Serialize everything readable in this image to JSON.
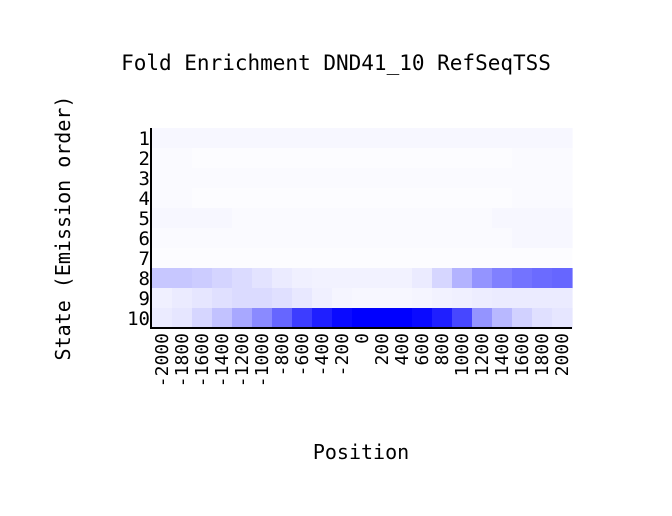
{
  "chart_data": {
    "type": "heatmap",
    "title": "Fold Enrichment DND41_10 RefSeqTSS",
    "xlabel": "Position",
    "ylabel": "State (Emission order)",
    "x_tick_labels": [
      "-2000",
      "-1800",
      "-1600",
      "-1400",
      "-1200",
      "-1000",
      "-800",
      "-600",
      "-400",
      "-200",
      "0",
      "200",
      "400",
      "600",
      "800",
      "1000",
      "1200",
      "1400",
      "1600",
      "1800",
      "2000"
    ],
    "y_tick_labels": [
      "1",
      "2",
      "3",
      "4",
      "5",
      "6",
      "7",
      "8",
      "9",
      "10"
    ],
    "color_scale": {
      "low": "#ffffff",
      "high": "#0000ff"
    },
    "values": [
      [
        0.03,
        0.03,
        0.03,
        0.03,
        0.03,
        0.03,
        0.03,
        0.03,
        0.03,
        0.03,
        0.03,
        0.03,
        0.03,
        0.03,
        0.03,
        0.03,
        0.03,
        0.03,
        0.03,
        0.03,
        0.03
      ],
      [
        0.02,
        0.02,
        0.01,
        0.01,
        0.01,
        0.01,
        0.01,
        0.01,
        0.01,
        0.01,
        0.01,
        0.01,
        0.01,
        0.01,
        0.01,
        0.01,
        0.01,
        0.01,
        0.02,
        0.02,
        0.02
      ],
      [
        0.02,
        0.02,
        0.02,
        0.02,
        0.02,
        0.02,
        0.02,
        0.02,
        0.02,
        0.02,
        0.02,
        0.02,
        0.02,
        0.02,
        0.02,
        0.02,
        0.02,
        0.02,
        0.02,
        0.02,
        0.02
      ],
      [
        0.02,
        0.02,
        0.01,
        0.01,
        0.01,
        0.01,
        0.01,
        0.01,
        0.01,
        0.01,
        0.01,
        0.01,
        0.01,
        0.01,
        0.01,
        0.01,
        0.01,
        0.01,
        0.02,
        0.02,
        0.02
      ],
      [
        0.03,
        0.03,
        0.03,
        0.03,
        0.02,
        0.02,
        0.02,
        0.02,
        0.02,
        0.02,
        0.02,
        0.02,
        0.02,
        0.02,
        0.02,
        0.02,
        0.02,
        0.03,
        0.03,
        0.03,
        0.03
      ],
      [
        0.02,
        0.02,
        0.02,
        0.02,
        0.02,
        0.02,
        0.02,
        0.02,
        0.02,
        0.02,
        0.02,
        0.02,
        0.02,
        0.02,
        0.02,
        0.02,
        0.02,
        0.02,
        0.03,
        0.03,
        0.03
      ],
      [
        0.01,
        0.01,
        0.01,
        0.01,
        0.01,
        0.01,
        0.01,
        0.01,
        0.01,
        0.01,
        0.01,
        0.01,
        0.01,
        0.01,
        0.01,
        0.01,
        0.01,
        0.01,
        0.01,
        0.01,
        0.01
      ],
      [
        0.22,
        0.22,
        0.2,
        0.17,
        0.14,
        0.11,
        0.08,
        0.06,
        0.05,
        0.05,
        0.05,
        0.05,
        0.05,
        0.08,
        0.16,
        0.3,
        0.42,
        0.5,
        0.55,
        0.58,
        0.6
      ],
      [
        0.06,
        0.08,
        0.1,
        0.12,
        0.14,
        0.14,
        0.12,
        0.09,
        0.06,
        0.04,
        0.03,
        0.03,
        0.03,
        0.04,
        0.05,
        0.06,
        0.07,
        0.08,
        0.08,
        0.08,
        0.08
      ],
      [
        0.08,
        0.1,
        0.16,
        0.24,
        0.34,
        0.46,
        0.6,
        0.76,
        0.88,
        0.96,
        1.0,
        1.0,
        1.0,
        0.96,
        0.88,
        0.72,
        0.42,
        0.28,
        0.18,
        0.12,
        0.1
      ]
    ]
  }
}
